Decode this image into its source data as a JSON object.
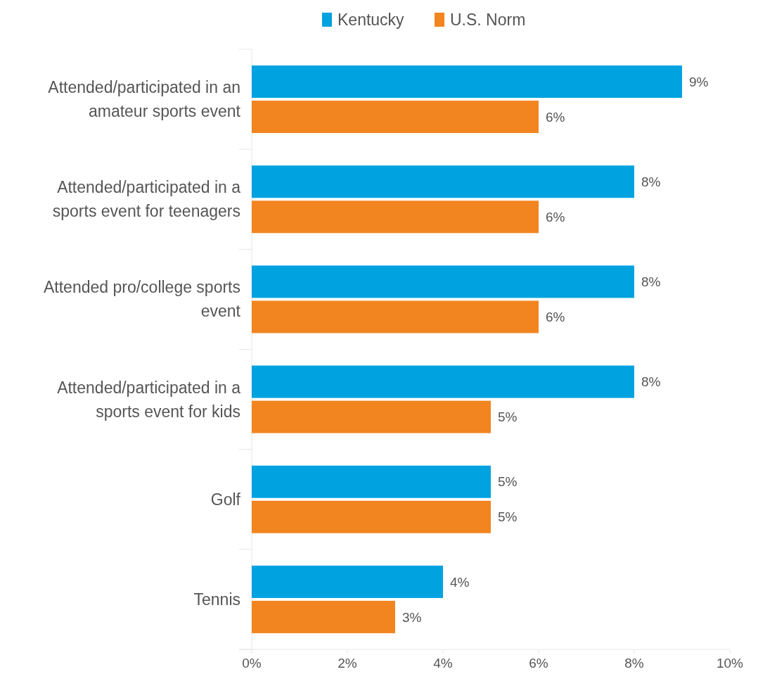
{
  "chart_data": {
    "type": "bar",
    "orientation": "horizontal",
    "categories": [
      "Attended/participated in an amateur sports event",
      "Attended/participated in a sports event for teenagers",
      "Attended pro/college sports event",
      "Attended/participated in a sports event for kids",
      "Golf",
      "Tennis"
    ],
    "series": [
      {
        "name": "Kentucky",
        "color": "#00a2e0",
        "values": [
          9,
          8,
          8,
          8,
          5,
          4
        ],
        "value_labels": [
          "9%",
          "8%",
          "8%",
          "8%",
          "5%",
          "4%"
        ]
      },
      {
        "name": "U.S. Norm",
        "color": "#f28520",
        "values": [
          6,
          6,
          6,
          5,
          5,
          3
        ],
        "value_labels": [
          "6%",
          "6%",
          "6%",
          "5%",
          "5%",
          "3%"
        ]
      }
    ],
    "xlim": [
      0,
      10
    ],
    "xticks": [
      {
        "value": 0,
        "label": "0%"
      },
      {
        "value": 2,
        "label": "2%"
      },
      {
        "value": 4,
        "label": "4%"
      },
      {
        "value": 6,
        "label": "6%"
      },
      {
        "value": 8,
        "label": "8%"
      },
      {
        "value": 10,
        "label": "10%"
      }
    ],
    "grid": false,
    "legend": "top"
  }
}
